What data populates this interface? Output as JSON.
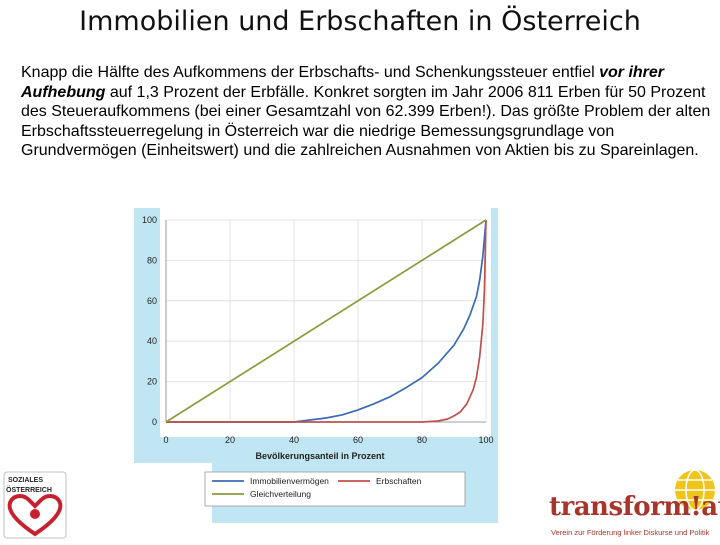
{
  "slide": {
    "title": "Immobilien und Erbschaften in Österreich",
    "text_part1": "Knapp die Hälfte des Aufkommens der Erbschafts- und Schenkungssteuer entfiel ",
    "text_emph": "vor ihrer Aufhebung",
    "text_part2": " auf 1,3 Prozent der Erbfälle. Konkret sorgten im Jahr 2006 811 Erben für 50 Prozent des Steueraufkommens (bei einer Gesamtzahl von 62.399 Erben!). Das größte Problem der alten Erbschaftssteuerregelung in Österreich war die niedrige Bemessungsgrundlage von Grundvermögen (Einheitswert) und die zahlreichen Ausnahmen von Aktien bis zu Spareinlagen."
  },
  "logos": {
    "left_top": "SOZIALES",
    "left_bottom": "ÖSTERREICH",
    "right_brand": "transform!at",
    "right_sub": "Verein zur Förderung linker Diskurse und Politik"
  },
  "colors": {
    "accent_panel": "#bfe6f2",
    "immobilien": "#3a6bb5",
    "erbschaften": "#c0504d",
    "gleich": "#8a9a3c",
    "brand": "#a8352b"
  },
  "chart_data": {
    "type": "line",
    "xlabel": "Bevölkerungsanteil in Prozent",
    "ylabel": "",
    "xlim": [
      0,
      100
    ],
    "ylim": [
      0,
      100
    ],
    "x_ticks": [
      "0",
      "20",
      "40",
      "60",
      "80",
      "100"
    ],
    "y_ticks": [
      "0",
      "20",
      "40",
      "60",
      "80",
      "100"
    ],
    "grid": true,
    "legend_position": "bottom",
    "series": [
      {
        "name": "Immobilienvermögen",
        "color": "#3a6bb5",
        "x": [
          0,
          40,
          45,
          50,
          55,
          60,
          65,
          70,
          75,
          80,
          85,
          90,
          93,
          95,
          97,
          98,
          99,
          100
        ],
        "y": [
          0,
          0,
          1,
          2,
          3.5,
          6,
          9,
          12.5,
          17,
          22,
          29,
          38,
          46,
          53,
          62,
          70,
          82,
          100
        ]
      },
      {
        "name": "Erbschaften",
        "color": "#c0504d",
        "x": [
          0,
          80,
          85,
          88,
          90,
          92,
          94,
          96,
          97,
          98,
          99,
          99.5,
          100
        ],
        "y": [
          0,
          0,
          0.5,
          1.5,
          3,
          5,
          9,
          16,
          22,
          32,
          48,
          65,
          100
        ]
      },
      {
        "name": "Gleichverteilung",
        "color": "#8a9a3c",
        "x": [
          0,
          100
        ],
        "y": [
          0,
          100
        ]
      }
    ]
  }
}
